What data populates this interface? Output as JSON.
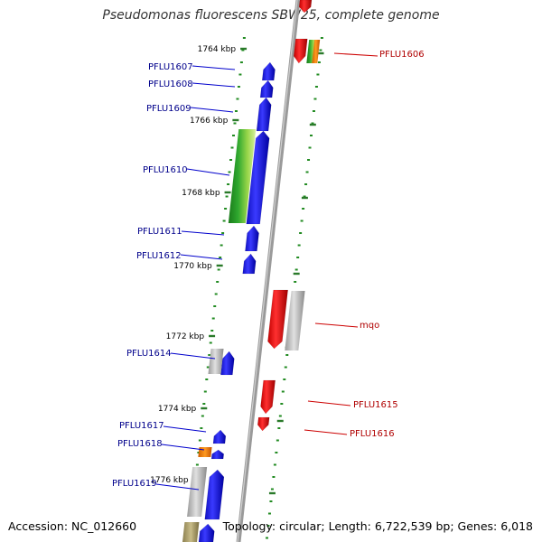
{
  "title": "Pseudomonas fluorescens SBW25, complete genome",
  "footer": {
    "accession": "Accession: NC_012660",
    "summary": "Topology: circular; Length: 6,722,539 bp; Genes: 6,018"
  },
  "ruler_labels": [
    "1764 kbp",
    "1766 kbp",
    "1768 kbp",
    "1770 kbp",
    "1772 kbp",
    "1774 kbp",
    "1776 kbp"
  ],
  "genes_left": [
    "PFLU1607",
    "PFLU1608",
    "PFLU1609",
    "PFLU1610",
    "PFLU1611",
    "PFLU1612",
    "PFLU1614",
    "PFLU1617",
    "PFLU1618",
    "PFLU1619"
  ],
  "genes_right": [
    "PFLU1606",
    "mqo",
    "PFLU1615",
    "PFLU1616"
  ],
  "colors": {
    "forward_gene": "#0000ee",
    "reverse_gene": "#ee0000",
    "left_label": "#00008b",
    "right_label": "#b00000",
    "tick": "#228b22",
    "axis": "#888888"
  }
}
